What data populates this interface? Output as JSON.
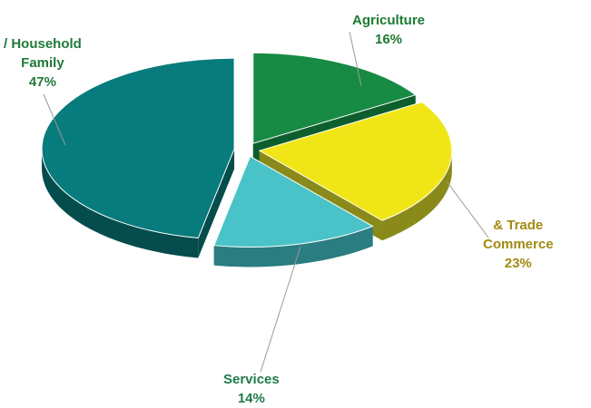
{
  "chart_data": {
    "type": "pie",
    "title": "",
    "three_d": true,
    "exploded": true,
    "slices": [
      {
        "label_lines": [
          "Agriculture"
        ],
        "value": 16,
        "value_text": "16%",
        "color": "#178a43",
        "side_color": "#0d5e2d"
      },
      {
        "label_lines": [
          "& Trade",
          "Commerce"
        ],
        "value": 23,
        "value_text": "23%",
        "color": "#f0e617",
        "side_color": "#8a8a1a"
      },
      {
        "label_lines": [
          "Services"
        ],
        "value": 14,
        "value_text": "14%",
        "color": "#49c3c7",
        "side_color": "#2a7d80"
      },
      {
        "label_lines": [
          "/ Household",
          "Family"
        ],
        "value": 47,
        "value_text": "47%",
        "color": "#087b7d",
        "side_color": "#054c4d"
      }
    ],
    "label_colors": {
      "Agriculture": "#1d7a30",
      "Commerce": "#a08a12",
      "Services": "#1f7a4a",
      "Family": "#1f7a3a"
    }
  }
}
